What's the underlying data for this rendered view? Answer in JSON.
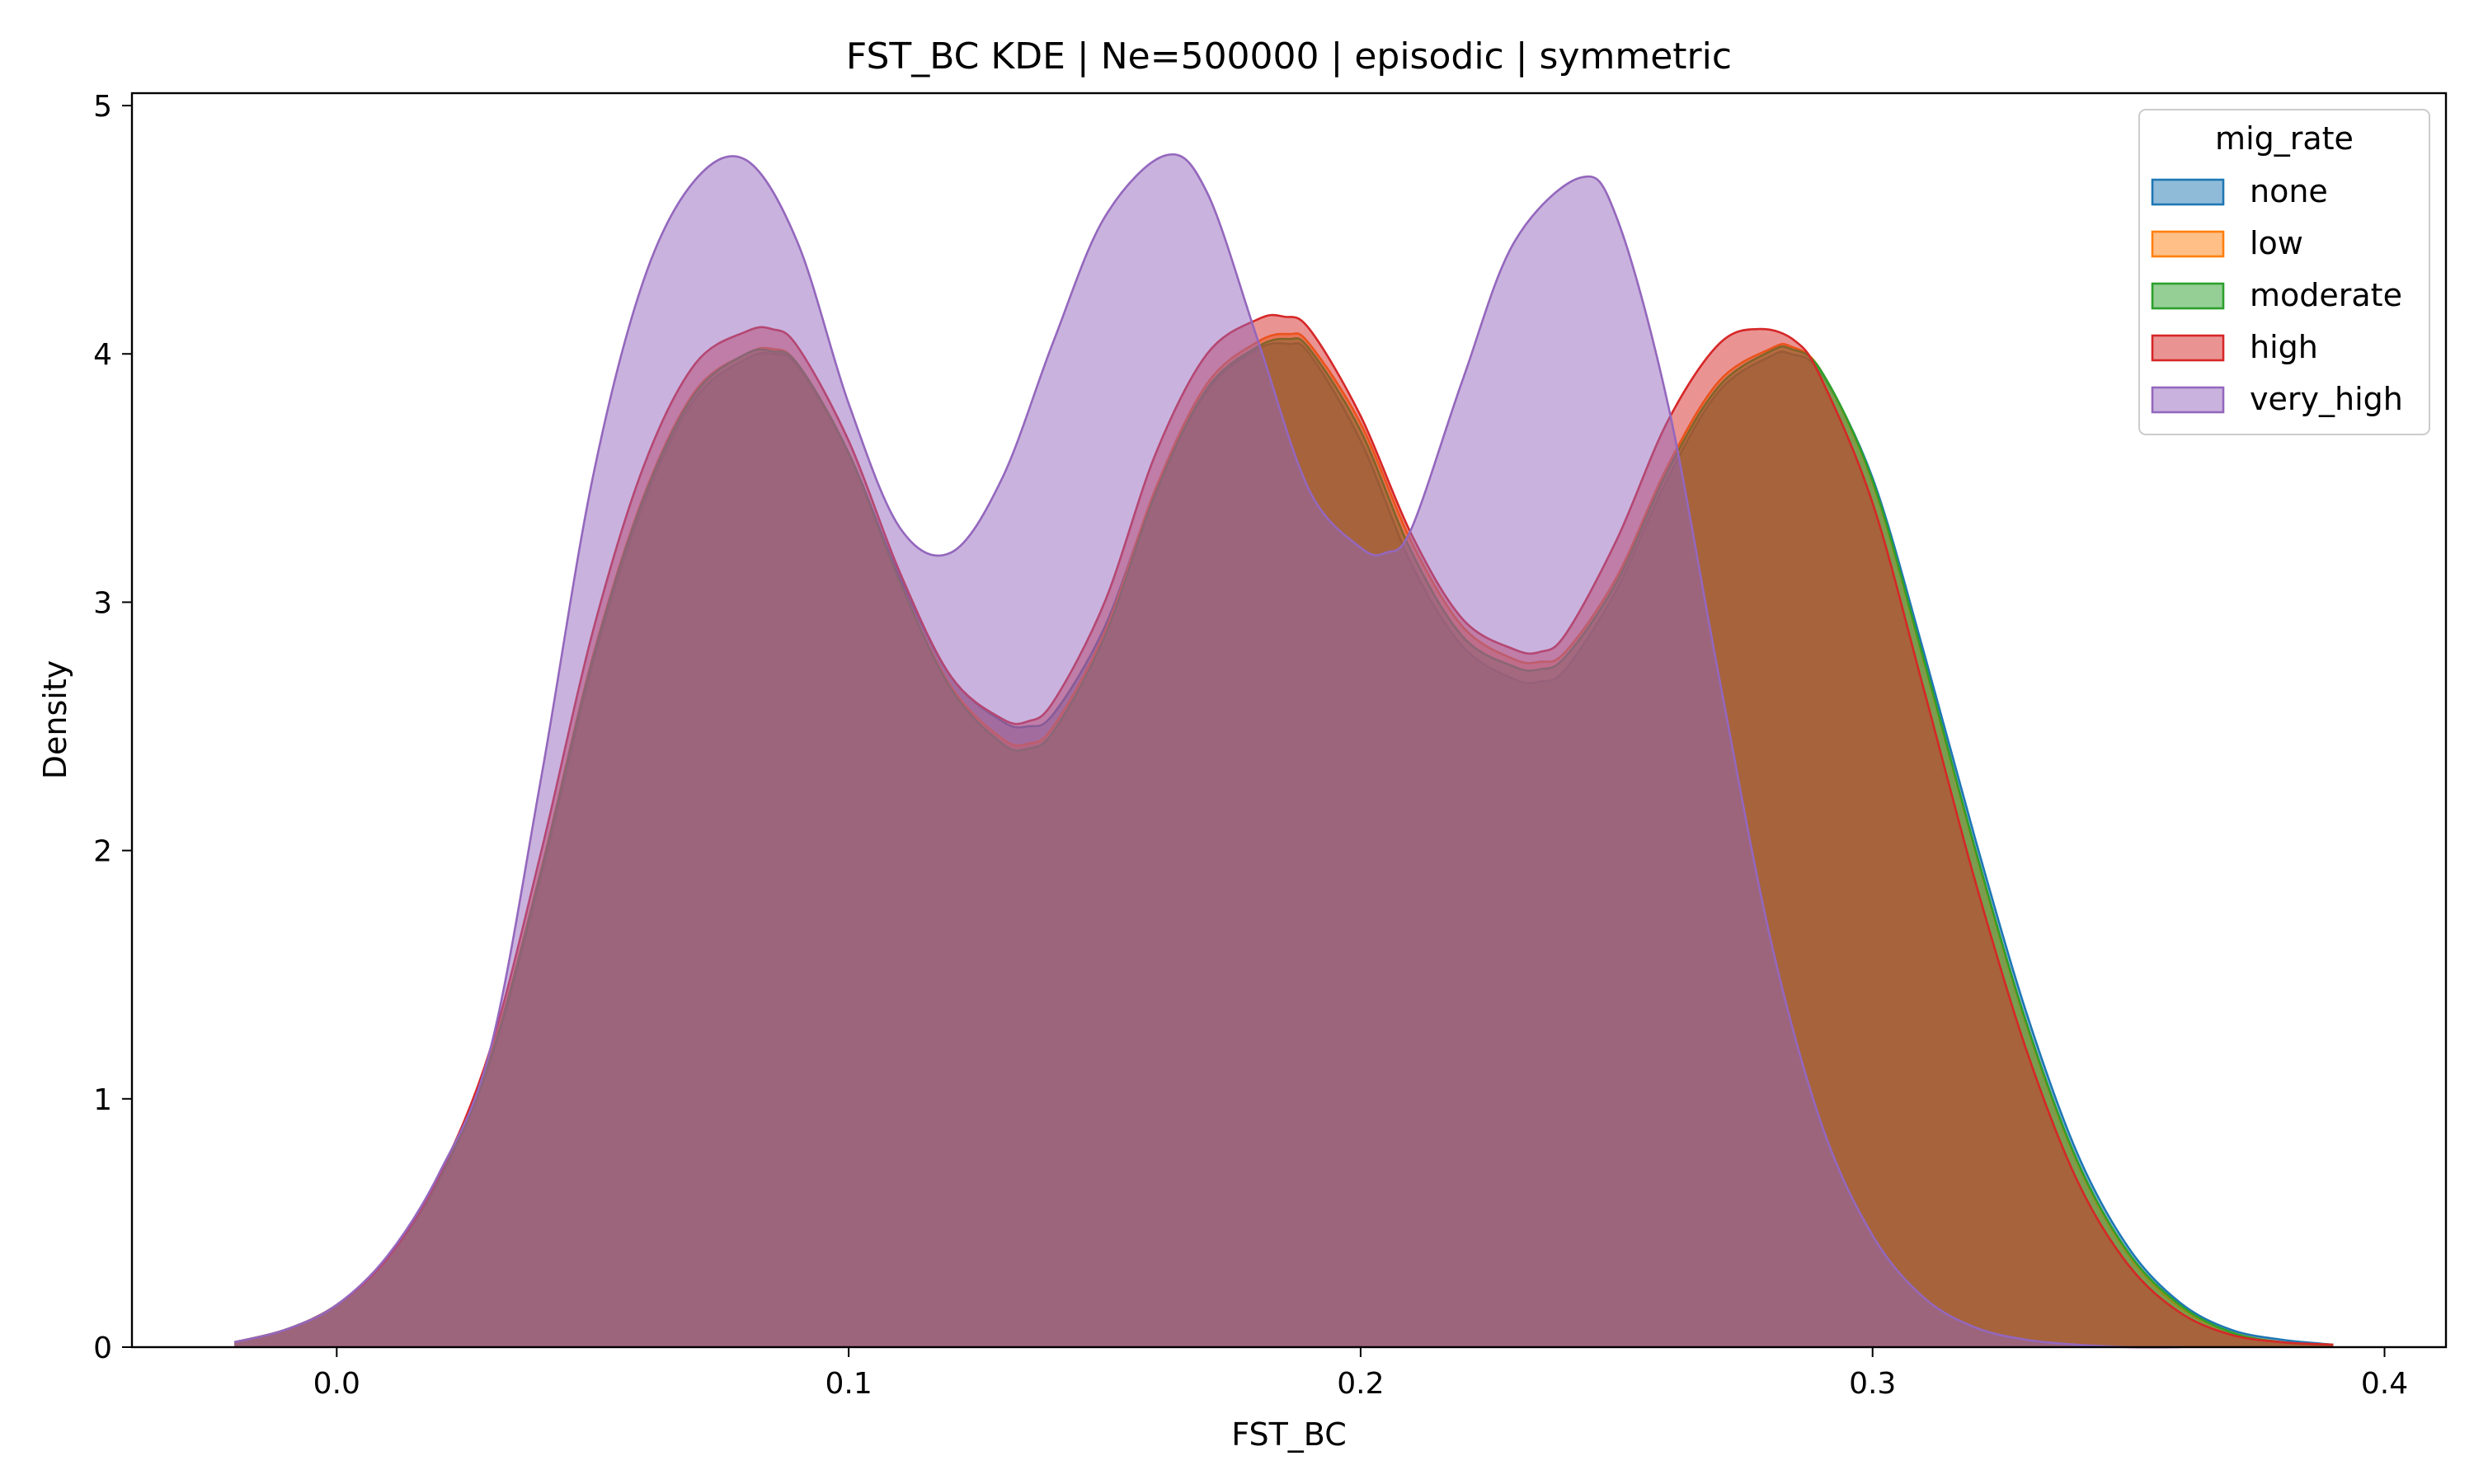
{
  "chart_data": {
    "type": "area",
    "title": "FST_BC KDE | Ne=500000 | episodic | symmetric",
    "xlabel": "FST_BC",
    "ylabel": "Density",
    "xlim": [
      -0.04,
      0.412
    ],
    "ylim": [
      0,
      5.05
    ],
    "xticks": [
      0.0,
      0.1,
      0.2,
      0.3,
      0.4
    ],
    "xtick_labels": [
      "0.0",
      "0.1",
      "0.2",
      "0.3",
      "0.4"
    ],
    "yticks": [
      0,
      1,
      2,
      3,
      4,
      5
    ],
    "ytick_labels": [
      "0",
      "1",
      "2",
      "3",
      "4",
      "5"
    ],
    "grid": false,
    "legend": {
      "title": "mig_rate",
      "placement": "top-right"
    },
    "series": [
      {
        "name": "none",
        "color": "#1f77b4",
        "x": [
          -0.02,
          -0.01,
          0.0,
          0.01,
          0.02,
          0.03,
          0.04,
          0.05,
          0.06,
          0.07,
          0.08,
          0.085,
          0.09,
          0.1,
          0.11,
          0.12,
          0.13,
          0.135,
          0.14,
          0.15,
          0.16,
          0.17,
          0.18,
          0.186,
          0.19,
          0.2,
          0.21,
          0.22,
          0.23,
          0.235,
          0.24,
          0.25,
          0.26,
          0.27,
          0.28,
          0.284,
          0.29,
          0.3,
          0.31,
          0.32,
          0.33,
          0.34,
          0.35,
          0.36,
          0.37,
          0.38,
          0.39
        ],
        "y": [
          0.02,
          0.07,
          0.17,
          0.36,
          0.67,
          1.15,
          1.9,
          2.75,
          3.4,
          3.82,
          3.98,
          4.0,
          3.95,
          3.6,
          3.1,
          2.7,
          2.52,
          2.5,
          2.55,
          2.9,
          3.45,
          3.85,
          4.02,
          4.04,
          4.0,
          3.65,
          3.15,
          2.82,
          2.69,
          2.68,
          2.73,
          3.05,
          3.5,
          3.85,
          3.99,
          4.0,
          3.92,
          3.5,
          2.8,
          2.05,
          1.35,
          0.78,
          0.4,
          0.18,
          0.07,
          0.03,
          0.01
        ]
      },
      {
        "name": "low",
        "color": "#ff7f0e",
        "x": [
          -0.02,
          -0.01,
          0.0,
          0.01,
          0.02,
          0.03,
          0.04,
          0.05,
          0.06,
          0.07,
          0.08,
          0.085,
          0.09,
          0.1,
          0.11,
          0.12,
          0.13,
          0.135,
          0.14,
          0.15,
          0.16,
          0.17,
          0.18,
          0.186,
          0.19,
          0.2,
          0.21,
          0.22,
          0.23,
          0.235,
          0.24,
          0.25,
          0.26,
          0.27,
          0.28,
          0.284,
          0.29,
          0.3,
          0.31,
          0.32,
          0.33,
          0.34,
          0.35,
          0.36,
          0.37,
          0.38,
          0.39
        ],
        "y": [
          0.02,
          0.07,
          0.17,
          0.36,
          0.68,
          1.17,
          1.93,
          2.78,
          3.43,
          3.85,
          4.0,
          4.02,
          3.96,
          3.6,
          3.08,
          2.66,
          2.45,
          2.43,
          2.5,
          2.88,
          3.46,
          3.88,
          4.05,
          4.08,
          4.04,
          3.72,
          3.24,
          2.9,
          2.77,
          2.76,
          2.8,
          3.1,
          3.55,
          3.89,
          4.02,
          4.03,
          3.93,
          3.48,
          2.76,
          2.0,
          1.3,
          0.74,
          0.37,
          0.16,
          0.06,
          0.02,
          0.01
        ]
      },
      {
        "name": "moderate",
        "color": "#2ca02c",
        "x": [
          -0.02,
          -0.01,
          0.0,
          0.01,
          0.02,
          0.03,
          0.04,
          0.05,
          0.06,
          0.07,
          0.08,
          0.085,
          0.09,
          0.1,
          0.11,
          0.12,
          0.13,
          0.135,
          0.14,
          0.15,
          0.16,
          0.17,
          0.18,
          0.186,
          0.19,
          0.2,
          0.21,
          0.22,
          0.23,
          0.235,
          0.24,
          0.25,
          0.26,
          0.27,
          0.28,
          0.284,
          0.29,
          0.3,
          0.31,
          0.32,
          0.33,
          0.34,
          0.35,
          0.36,
          0.37,
          0.38,
          0.39
        ],
        "y": [
          0.02,
          0.07,
          0.17,
          0.36,
          0.68,
          1.16,
          1.92,
          2.77,
          3.42,
          3.84,
          4.0,
          4.01,
          3.96,
          3.6,
          3.08,
          2.65,
          2.43,
          2.41,
          2.48,
          2.86,
          3.44,
          3.86,
          4.03,
          4.06,
          4.02,
          3.69,
          3.2,
          2.86,
          2.74,
          2.73,
          2.78,
          3.08,
          3.53,
          3.87,
          4.01,
          4.02,
          3.93,
          3.49,
          2.77,
          2.01,
          1.31,
          0.75,
          0.38,
          0.17,
          0.06,
          0.02,
          0.01
        ]
      },
      {
        "name": "high",
        "color": "#d62728",
        "x": [
          -0.02,
          -0.01,
          0.0,
          0.01,
          0.02,
          0.03,
          0.04,
          0.05,
          0.06,
          0.07,
          0.08,
          0.085,
          0.09,
          0.1,
          0.11,
          0.12,
          0.13,
          0.135,
          0.14,
          0.15,
          0.16,
          0.17,
          0.18,
          0.185,
          0.19,
          0.2,
          0.21,
          0.22,
          0.23,
          0.235,
          0.24,
          0.25,
          0.26,
          0.27,
          0.278,
          0.285,
          0.29,
          0.3,
          0.31,
          0.32,
          0.33,
          0.34,
          0.35,
          0.36,
          0.37,
          0.38,
          0.39
        ],
        "y": [
          0.02,
          0.07,
          0.17,
          0.36,
          0.69,
          1.2,
          2.0,
          2.88,
          3.55,
          3.96,
          4.09,
          4.1,
          4.03,
          3.65,
          3.12,
          2.7,
          2.53,
          2.52,
          2.6,
          3.0,
          3.6,
          4.0,
          4.14,
          4.15,
          4.1,
          3.75,
          3.27,
          2.93,
          2.81,
          2.8,
          2.87,
          3.25,
          3.73,
          4.04,
          4.1,
          4.05,
          3.9,
          3.4,
          2.65,
          1.88,
          1.2,
          0.67,
          0.33,
          0.14,
          0.05,
          0.02,
          0.01
        ]
      },
      {
        "name": "very_high",
        "color": "#9467bd",
        "x": [
          -0.02,
          -0.01,
          0.0,
          0.01,
          0.02,
          0.03,
          0.04,
          0.05,
          0.06,
          0.07,
          0.08,
          0.09,
          0.1,
          0.11,
          0.12,
          0.13,
          0.14,
          0.15,
          0.162,
          0.17,
          0.18,
          0.19,
          0.2,
          0.205,
          0.21,
          0.22,
          0.23,
          0.243,
          0.25,
          0.26,
          0.27,
          0.28,
          0.29,
          0.3,
          0.31,
          0.32,
          0.33,
          0.34,
          0.35,
          0.36
        ],
        "y": [
          0.02,
          0.07,
          0.17,
          0.37,
          0.7,
          1.2,
          2.3,
          3.5,
          4.3,
          4.7,
          4.78,
          4.45,
          3.8,
          3.3,
          3.2,
          3.5,
          4.05,
          4.55,
          4.8,
          4.65,
          4.05,
          3.45,
          3.22,
          3.2,
          3.3,
          3.9,
          4.45,
          4.71,
          4.55,
          3.8,
          2.7,
          1.65,
          0.9,
          0.45,
          0.2,
          0.08,
          0.03,
          0.01,
          0.0,
          0.0
        ]
      }
    ]
  }
}
